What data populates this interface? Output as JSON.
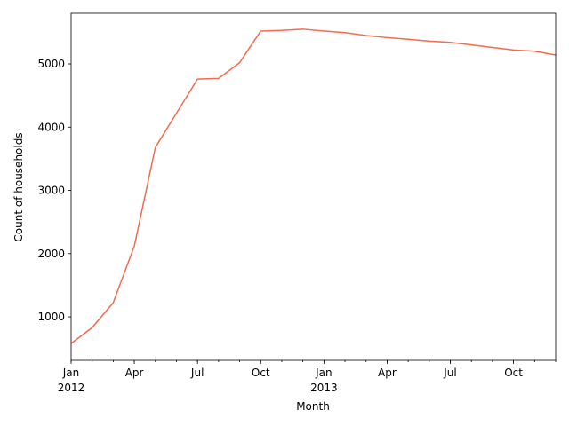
{
  "chart_data": {
    "type": "line",
    "x_label": "Month",
    "y_label": "Count of households",
    "x": [
      "2012-01",
      "2012-02",
      "2012-03",
      "2012-04",
      "2012-05",
      "2012-06",
      "2012-07",
      "2012-08",
      "2012-09",
      "2012-10",
      "2012-11",
      "2012-12",
      "2013-01",
      "2013-02",
      "2013-03",
      "2013-04",
      "2013-05",
      "2013-06",
      "2013-07",
      "2013-08",
      "2013-09",
      "2013-10",
      "2013-11",
      "2013-12"
    ],
    "series": [
      {
        "color": "#f26b4f",
        "values": [
          580,
          830,
          1225,
          2120,
          3680,
          4220,
          4760,
          4770,
          5020,
          5520,
          5530,
          5550,
          5520,
          5495,
          5450,
          5415,
          5390,
          5360,
          5340,
          5300,
          5260,
          5220,
          5200,
          5140
        ]
      }
    ],
    "xlim": [
      "2012-01",
      "2013-12"
    ],
    "xticks": [
      {
        "value": "2012-01",
        "label": "Jan",
        "year": "2012"
      },
      {
        "value": "2012-04",
        "label": "Apr"
      },
      {
        "value": "2012-07",
        "label": "Jul"
      },
      {
        "value": "2012-10",
        "label": "Oct"
      },
      {
        "value": "2013-01",
        "label": "Jan",
        "year": "2013"
      },
      {
        "value": "2013-04",
        "label": "Apr"
      },
      {
        "value": "2013-07",
        "label": "Jul"
      },
      {
        "value": "2013-10",
        "label": "Oct"
      }
    ],
    "ylim": [
      313,
      5800
    ],
    "yticks": [
      1000,
      2000,
      3000,
      4000,
      5000
    ]
  }
}
